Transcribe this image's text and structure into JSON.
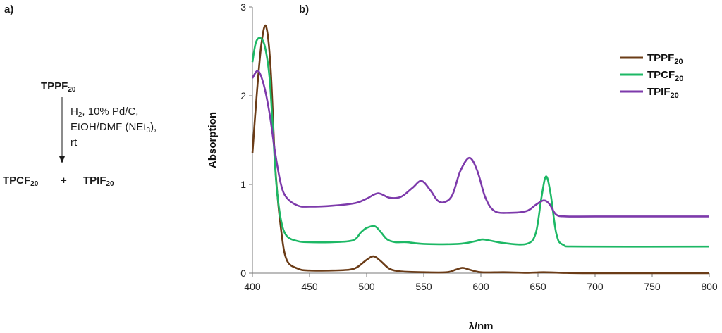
{
  "scheme": {
    "panel_label": "a)",
    "reactant": {
      "name": "TPPF",
      "sub": "20"
    },
    "conditions": {
      "line1": {
        "pre": "H",
        "sub": "2",
        "post": ", 10% Pd/C,"
      },
      "line2": {
        "pre": "EtOH/DMF (NEt",
        "sub": "3",
        "post": "),"
      },
      "line3": "rt"
    },
    "product1": {
      "name": "TPCF",
      "sub": "20"
    },
    "plus": "+",
    "product2": {
      "name": "TPIF",
      "sub": "20"
    }
  },
  "chart_data": {
    "type": "line",
    "panel_label": "b)",
    "title": "",
    "xlabel": "λ/nm",
    "ylabel": "Absorption",
    "xlim": [
      400,
      800
    ],
    "ylim": [
      0,
      3
    ],
    "xticks": [
      "400",
      "450",
      "500",
      "550",
      "600",
      "650",
      "700",
      "750",
      "800"
    ],
    "yticks": [
      "0",
      "1",
      "2",
      "3"
    ],
    "legend_position": "top-right",
    "grid": false,
    "series": [
      {
        "name": "TPPF",
        "sub": "20",
        "color": "#6b3c17",
        "x": [
          400,
          404,
          408,
          412,
          416,
          420,
          425,
          430,
          440,
          450,
          470,
          485,
          492,
          500,
          506,
          512,
          520,
          530,
          550,
          570,
          578,
          584,
          590,
          600,
          620,
          640,
          655,
          670,
          700,
          800
        ],
        "y": [
          1.35,
          2.05,
          2.6,
          2.78,
          2.3,
          1.2,
          0.5,
          0.15,
          0.05,
          0.03,
          0.03,
          0.04,
          0.07,
          0.15,
          0.19,
          0.14,
          0.05,
          0.02,
          0.01,
          0.01,
          0.04,
          0.06,
          0.04,
          0.01,
          0.01,
          0.005,
          0.01,
          0.005,
          0.0,
          0.0
        ]
      },
      {
        "name": "TPCF",
        "sub": "20",
        "color": "#1db865",
        "x": [
          400,
          403,
          407,
          411,
          415,
          418,
          421,
          425,
          430,
          440,
          450,
          470,
          488,
          495,
          500,
          507,
          512,
          518,
          525,
          535,
          550,
          580,
          595,
          601,
          607,
          620,
          640,
          648,
          653,
          657,
          661,
          666,
          672,
          690,
          800
        ],
        "y": [
          2.38,
          2.6,
          2.65,
          2.55,
          2.2,
          1.6,
          1.0,
          0.6,
          0.42,
          0.36,
          0.35,
          0.35,
          0.37,
          0.46,
          0.51,
          0.53,
          0.47,
          0.38,
          0.35,
          0.35,
          0.33,
          0.33,
          0.36,
          0.38,
          0.37,
          0.34,
          0.33,
          0.45,
          0.85,
          1.09,
          0.9,
          0.45,
          0.32,
          0.3,
          0.3
        ]
      },
      {
        "name": "TPIF",
        "sub": "20",
        "color": "#7d3aab",
        "x": [
          400,
          405,
          410,
          415,
          420,
          425,
          430,
          440,
          450,
          470,
          490,
          500,
          510,
          520,
          530,
          540,
          548,
          556,
          562,
          568,
          575,
          582,
          590,
          597,
          604,
          612,
          625,
          640,
          648,
          655,
          660,
          666,
          675,
          700,
          800
        ],
        "y": [
          2.2,
          2.28,
          2.12,
          1.8,
          1.35,
          1.0,
          0.85,
          0.76,
          0.75,
          0.76,
          0.79,
          0.84,
          0.9,
          0.85,
          0.86,
          0.96,
          1.04,
          0.93,
          0.82,
          0.8,
          0.88,
          1.15,
          1.3,
          1.15,
          0.85,
          0.7,
          0.68,
          0.7,
          0.77,
          0.82,
          0.78,
          0.66,
          0.64,
          0.64,
          0.64
        ]
      }
    ]
  }
}
